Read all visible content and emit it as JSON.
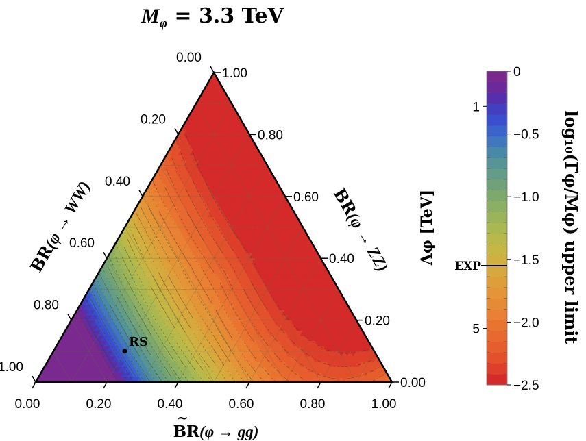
{
  "chart_data": {
    "type": "heatmap",
    "subtype": "ternary-contour",
    "title": {
      "symbol": "M",
      "subscript": "φ",
      "rest": " = 3.3 TeV"
    },
    "axes": {
      "bottom": {
        "label_prefix": "BR",
        "label_paren": "(φ → gg)",
        "ticks": [
          "0.00",
          "0.20",
          "0.40",
          "0.60",
          "0.80",
          "1.00"
        ],
        "range": [
          0,
          1
        ]
      },
      "left": {
        "label_prefix": "BR",
        "label_paren": "(φ → WW)",
        "ticks": [
          "0.00",
          "0.20",
          "0.40",
          "0.60",
          "0.80",
          "1.00"
        ],
        "range": [
          0,
          1
        ]
      },
      "right": {
        "label_prefix": "BR",
        "label_paren": "(φ → ZZ)",
        "ticks": [
          "0.00",
          "0.20",
          "0.40",
          "0.60",
          "0.80",
          "1.00"
        ],
        "range": [
          0,
          1
        ]
      }
    },
    "annotations": [
      {
        "text": "RS",
        "gg": 0.2,
        "ww": 0.7,
        "zz": 0.1
      }
    ],
    "colorbar": {
      "range": [
        -2.5,
        0
      ],
      "levels": 25,
      "ticks_right": [
        "0",
        "−0.5",
        "−1.0",
        "−1.5",
        "−2.0",
        "−2.5"
      ],
      "ticks_right_values": [
        0,
        -0.5,
        -1.0,
        -1.5,
        -2.0,
        -2.5
      ],
      "label_right": "log₁₀(Γ̃φ/Mφ) upper limit",
      "ticks_left": [
        "1",
        "5"
      ],
      "ticks_left_values": [
        -0.28,
        -2.05
      ],
      "label_left": "Λφ [TeV]",
      "exp_label": "EXP",
      "exp_value": -1.55,
      "colors": [
        "#d52a2a",
        "#dd3f2b",
        "#e2502c",
        "#e65d2e",
        "#e8692f",
        "#e97430",
        "#e98033",
        "#e68b35",
        "#e39537",
        "#de9f3a",
        "#d7a83d",
        "#cfb041",
        "#c5b645",
        "#b9b94b",
        "#aab852",
        "#9bb45a",
        "#8caf63",
        "#7ea96d",
        "#70a27a",
        "#639c87",
        "#569496",
        "#4a88a7",
        "#4077bd",
        "#3a63cc",
        "#3a4fce",
        "#4240c0",
        "#5530ad",
        "#6a2a9c",
        "#7a2a8f"
      ]
    }
  }
}
